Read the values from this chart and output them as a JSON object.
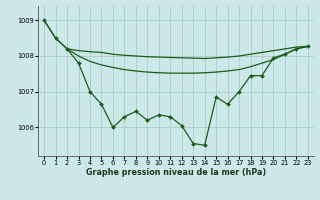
{
  "title": "Graphe pression niveau de la mer (hPa)",
  "background_color": "#cce8e8",
  "grid_color": "#aacccc",
  "line_color": "#1a5c1a",
  "xlim": [
    -0.5,
    23.5
  ],
  "ylim": [
    1005.2,
    1009.4
  ],
  "yticks": [
    1006,
    1007,
    1008,
    1009
  ],
  "xtick_labels": [
    "0",
    "1",
    "2",
    "3",
    "4",
    "5",
    "6",
    "7",
    "8",
    "9",
    "10",
    "11",
    "12",
    "13",
    "14",
    "15",
    "16",
    "17",
    "18",
    "19",
    "20",
    "21",
    "22",
    "23"
  ],
  "series1_x": [
    0,
    1,
    2,
    3,
    4,
    5,
    6,
    7,
    8,
    9,
    10,
    11,
    12,
    13,
    14,
    15,
    16,
    17,
    18,
    19,
    20,
    21,
    22,
    23
  ],
  "series1_y": [
    1009.0,
    1008.5,
    1008.2,
    1008.15,
    1008.12,
    1008.1,
    1008.05,
    1008.02,
    1008.0,
    1007.98,
    1007.97,
    1007.96,
    1007.95,
    1007.94,
    1007.93,
    1007.95,
    1007.97,
    1008.0,
    1008.05,
    1008.1,
    1008.15,
    1008.2,
    1008.25,
    1008.27
  ],
  "series2_x": [
    2,
    3,
    4,
    5,
    6,
    7,
    8,
    9,
    10,
    11,
    12,
    13,
    14,
    15,
    16,
    17,
    18,
    19,
    20,
    21,
    22,
    23
  ],
  "series2_y": [
    1008.2,
    1008.0,
    1007.85,
    1007.75,
    1007.68,
    1007.62,
    1007.58,
    1007.55,
    1007.53,
    1007.52,
    1007.52,
    1007.52,
    1007.53,
    1007.55,
    1007.58,
    1007.62,
    1007.7,
    1007.8,
    1007.9,
    1008.05,
    1008.2,
    1008.27
  ],
  "series3_x": [
    0,
    1,
    2,
    3,
    4,
    5,
    6,
    7,
    8,
    9,
    10,
    11,
    12,
    13,
    14,
    15,
    16,
    17,
    18,
    19,
    20,
    21,
    22,
    23
  ],
  "series3_y": [
    1009.0,
    1008.5,
    1008.2,
    1007.8,
    1007.0,
    1006.65,
    1006.0,
    1006.3,
    1006.45,
    1006.2,
    1006.35,
    1006.3,
    1006.05,
    1005.55,
    1005.5,
    1006.85,
    1006.65,
    1007.0,
    1007.45,
    1007.45,
    1007.95,
    1008.05,
    1008.2,
    1008.27
  ],
  "title_fontsize": 5.8,
  "tick_fontsize": 4.8
}
